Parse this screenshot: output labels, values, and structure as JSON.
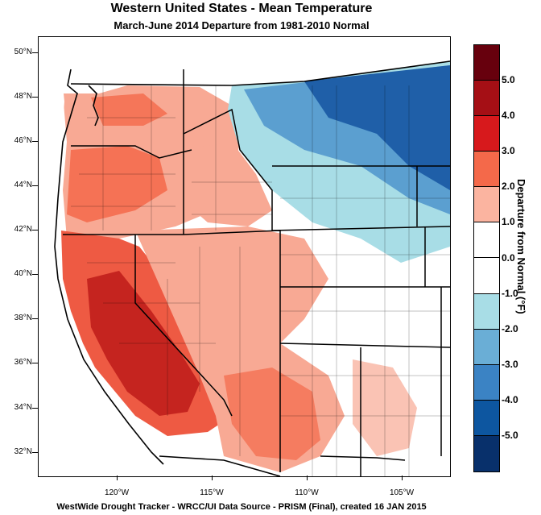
{
  "title": "Western United States - Mean Temperature",
  "subtitle": "March-June 2014  Departure from 1981-2010 Normal",
  "footer": "WestWide Drought Tracker - WRCC/UI  Data Source - PRISM (Final), created 16 JAN 2015",
  "lat_labels": [
    "50°N",
    "48°N",
    "46°N",
    "44°N",
    "42°N",
    "40°N",
    "38°N",
    "36°N",
    "34°N",
    "32°N"
  ],
  "lon_labels": [
    "120°W",
    "115°W",
    "110°W",
    "105°W"
  ],
  "colorbar": {
    "title": "Departure from Normal (°F)",
    "labels": [
      "5.0",
      "4.0",
      "3.0",
      "2.0",
      "1.0",
      "0.0",
      "-1.0",
      "-2.0",
      "-3.0",
      "-4.0",
      "-5.0"
    ],
    "colors": [
      "#67000d",
      "#a50f15",
      "#d7191c",
      "#f4694a",
      "#fbb4a0",
      "#ffffff",
      "#ffffff",
      "#a8dde6",
      "#6aaed6",
      "#3b83c4",
      "#0d56a0",
      "#08306b"
    ]
  },
  "colors": {
    "hot_strong": "#c5241f",
    "hot_mid": "#ee5a43",
    "hot_light": "#f8a994",
    "cool_light": "#a8dde6",
    "cool_mid": "#5b9fd0",
    "cool_strong": "#1f5fa8"
  }
}
